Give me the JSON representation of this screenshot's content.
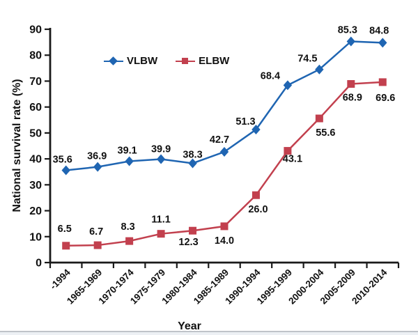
{
  "figure": {
    "x_axis_title": "Year",
    "y_axis_title": "National survival rate (%)"
  },
  "chart_data": {
    "type": "line",
    "categories": [
      "-1994",
      "1965-1969",
      "1970-1974",
      "1975-1979",
      "1980-1984",
      "1985-1989",
      "1990-1994",
      "1995-1999",
      "2000-2004",
      "2005-2009",
      "2010-2014"
    ],
    "series": [
      {
        "name": "VLBW",
        "color": "#1f65b2",
        "marker": "diamond",
        "values": [
          35.6,
          36.9,
          39.1,
          39.9,
          38.3,
          42.7,
          51.3,
          68.4,
          74.5,
          85.3,
          84.8
        ]
      },
      {
        "name": "ELBW",
        "color": "#c2404e",
        "marker": "square",
        "values": [
          6.5,
          6.7,
          8.3,
          11.1,
          12.3,
          14.0,
          26.0,
          43.1,
          55.6,
          68.9,
          69.6
        ]
      }
    ],
    "title": "",
    "xlabel": "Year",
    "ylabel": "National survival rate (%)",
    "ylim": [
      0,
      90
    ],
    "yticks": [
      0,
      10,
      20,
      30,
      40,
      50,
      60,
      70,
      80,
      90
    ],
    "grid": false,
    "data_labels": true,
    "legend_position": "inside-top-left",
    "axis_color": "#1a1a1a",
    "label_color": "#111111"
  }
}
